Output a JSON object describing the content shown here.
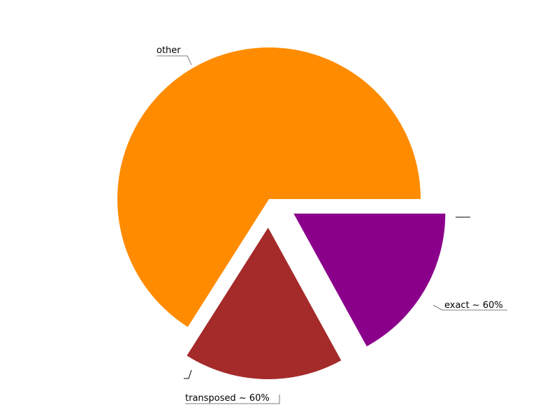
{
  "chart_data": {
    "type": "pie",
    "start_angle_deg": 0,
    "direction": "counterclockwise",
    "exploded": true,
    "slices": [
      {
        "label": "other",
        "value": 66,
        "color": "#FF8C00",
        "explode": false
      },
      {
        "label": "transposed ~ 60%",
        "value": 17,
        "color": "#A52A2A",
        "explode": true
      },
      {
        "label": "exact ~ 60%",
        "value": 17,
        "color": "#8B008B",
        "explode": true
      }
    ],
    "extra_labels": [
      "",
      ""
    ]
  }
}
